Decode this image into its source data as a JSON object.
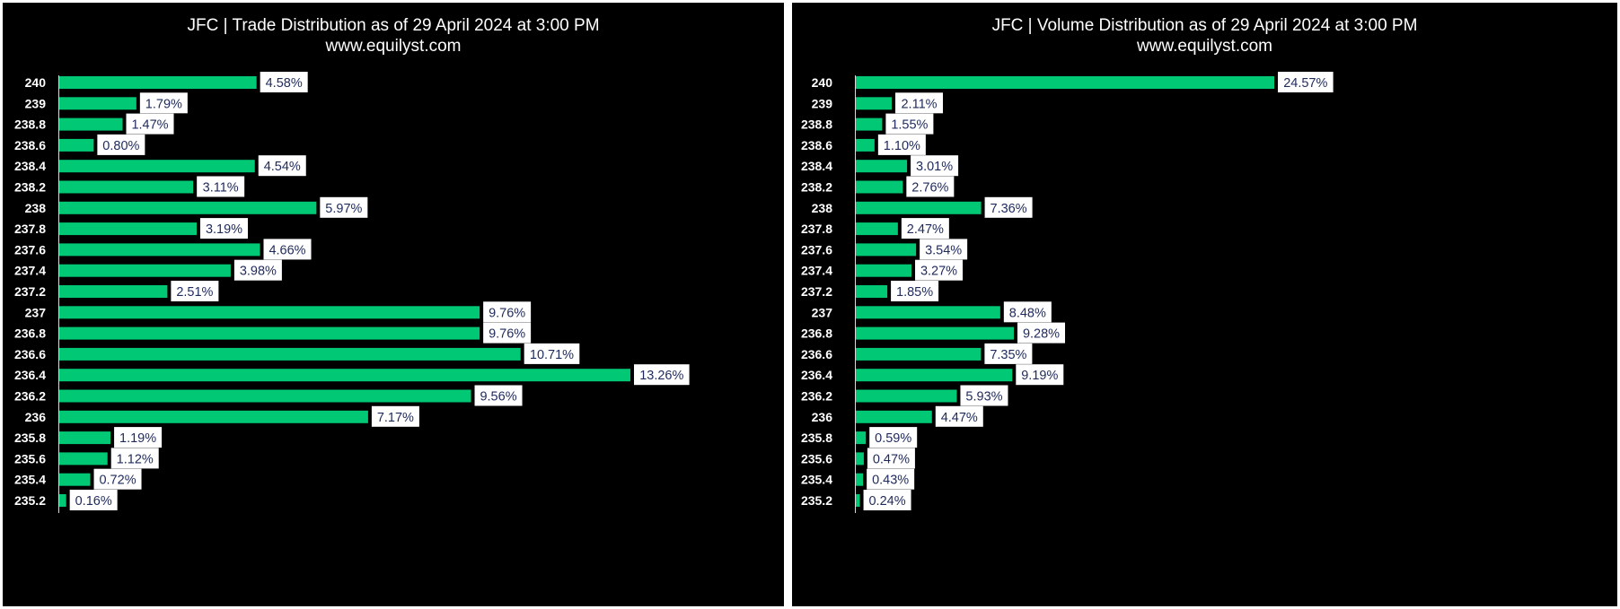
{
  "chart_data": [
    {
      "type": "bar",
      "orientation": "horizontal",
      "title": "JFC | Trade Distribution as of 29 April 2024 at 3:00 PM",
      "subtitle": "www.equilyst.com",
      "categories": [
        "240",
        "239",
        "238.8",
        "238.6",
        "238.4",
        "238.2",
        "238",
        "237.8",
        "237.6",
        "237.4",
        "237.2",
        "237",
        "236.8",
        "236.6",
        "236.4",
        "236.2",
        "236",
        "235.8",
        "235.6",
        "235.4",
        "235.2"
      ],
      "values": [
        4.58,
        1.79,
        1.47,
        0.8,
        4.54,
        3.11,
        5.97,
        3.19,
        4.66,
        3.98,
        2.51,
        9.76,
        9.76,
        10.71,
        13.26,
        9.56,
        7.17,
        1.19,
        1.12,
        0.72,
        0.16
      ],
      "value_labels": [
        "4.58%",
        "1.79%",
        "1.47%",
        "0.80%",
        "4.54%",
        "3.11%",
        "5.97%",
        "3.19%",
        "4.66%",
        "3.98%",
        "2.51%",
        "9.76%",
        "9.76%",
        "10.71%",
        "13.26%",
        "9.56%",
        "7.17%",
        "1.19%",
        "1.12%",
        "0.72%",
        "0.16%"
      ],
      "xlim": [
        0,
        13.26
      ],
      "grid": false,
      "bar_color": "#00c875",
      "background": "#000000"
    },
    {
      "type": "bar",
      "orientation": "horizontal",
      "title": "JFC | Volume Distribution as of 29 April 2024 at 3:00 PM",
      "subtitle": "www.equilyst.com",
      "categories": [
        "240",
        "239",
        "238.8",
        "238.6",
        "238.4",
        "238.2",
        "238",
        "237.8",
        "237.6",
        "237.4",
        "237.2",
        "237",
        "236.8",
        "236.6",
        "236.4",
        "236.2",
        "236",
        "235.8",
        "235.6",
        "235.4",
        "235.2"
      ],
      "values": [
        24.57,
        2.11,
        1.55,
        1.1,
        3.01,
        2.76,
        7.36,
        2.47,
        3.54,
        3.27,
        1.85,
        8.48,
        9.28,
        7.35,
        9.19,
        5.93,
        4.47,
        0.59,
        0.47,
        0.43,
        0.24
      ],
      "value_labels": [
        "24.57%",
        "2.11%",
        "1.55%",
        "1.10%",
        "3.01%",
        "2.76%",
        "7.36%",
        "2.47%",
        "3.54%",
        "3.27%",
        "1.85%",
        "8.48%",
        "9.28%",
        "7.35%",
        "9.19%",
        "5.93%",
        "4.47%",
        "0.59%",
        "0.47%",
        "0.43%",
        "0.24%"
      ],
      "xlim": [
        0,
        24.57
      ],
      "grid": false,
      "bar_color": "#00c875",
      "background": "#000000"
    }
  ]
}
